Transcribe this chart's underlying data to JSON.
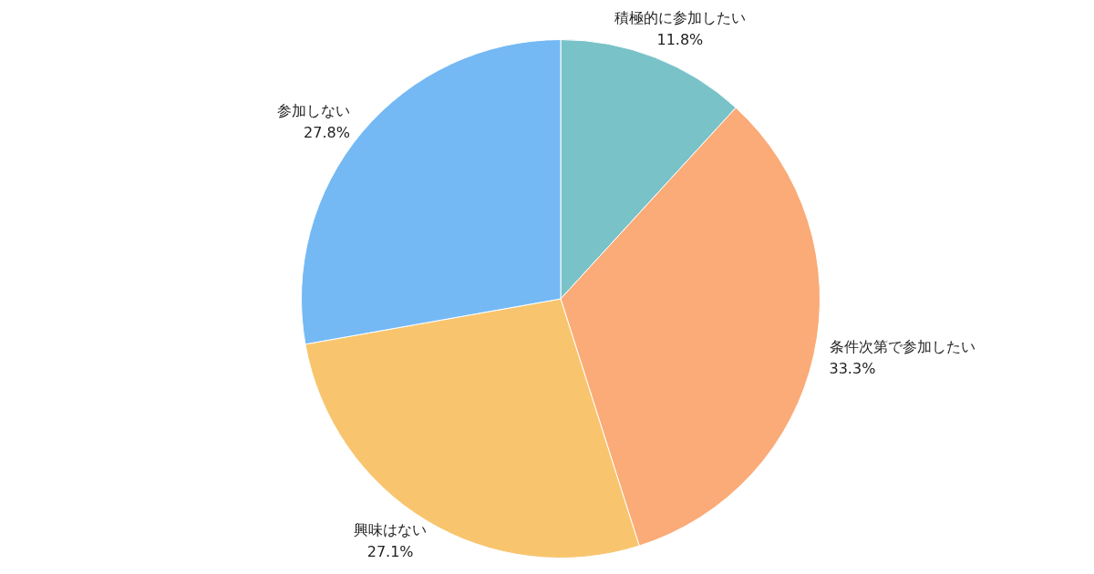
{
  "chart_data": {
    "type": "pie",
    "categories": [
      "積極的に参加したい",
      "条件次第で参加したい",
      "興味はない",
      "参加しない"
    ],
    "values": [
      11.8,
      33.3,
      27.1,
      27.8
    ],
    "value_labels": [
      "11.8%",
      "33.3%",
      "27.1%",
      "27.8%"
    ],
    "colors": [
      "#78c2c8",
      "#fbab77",
      "#f8c56e",
      "#74b9f4"
    ],
    "legend": false
  }
}
